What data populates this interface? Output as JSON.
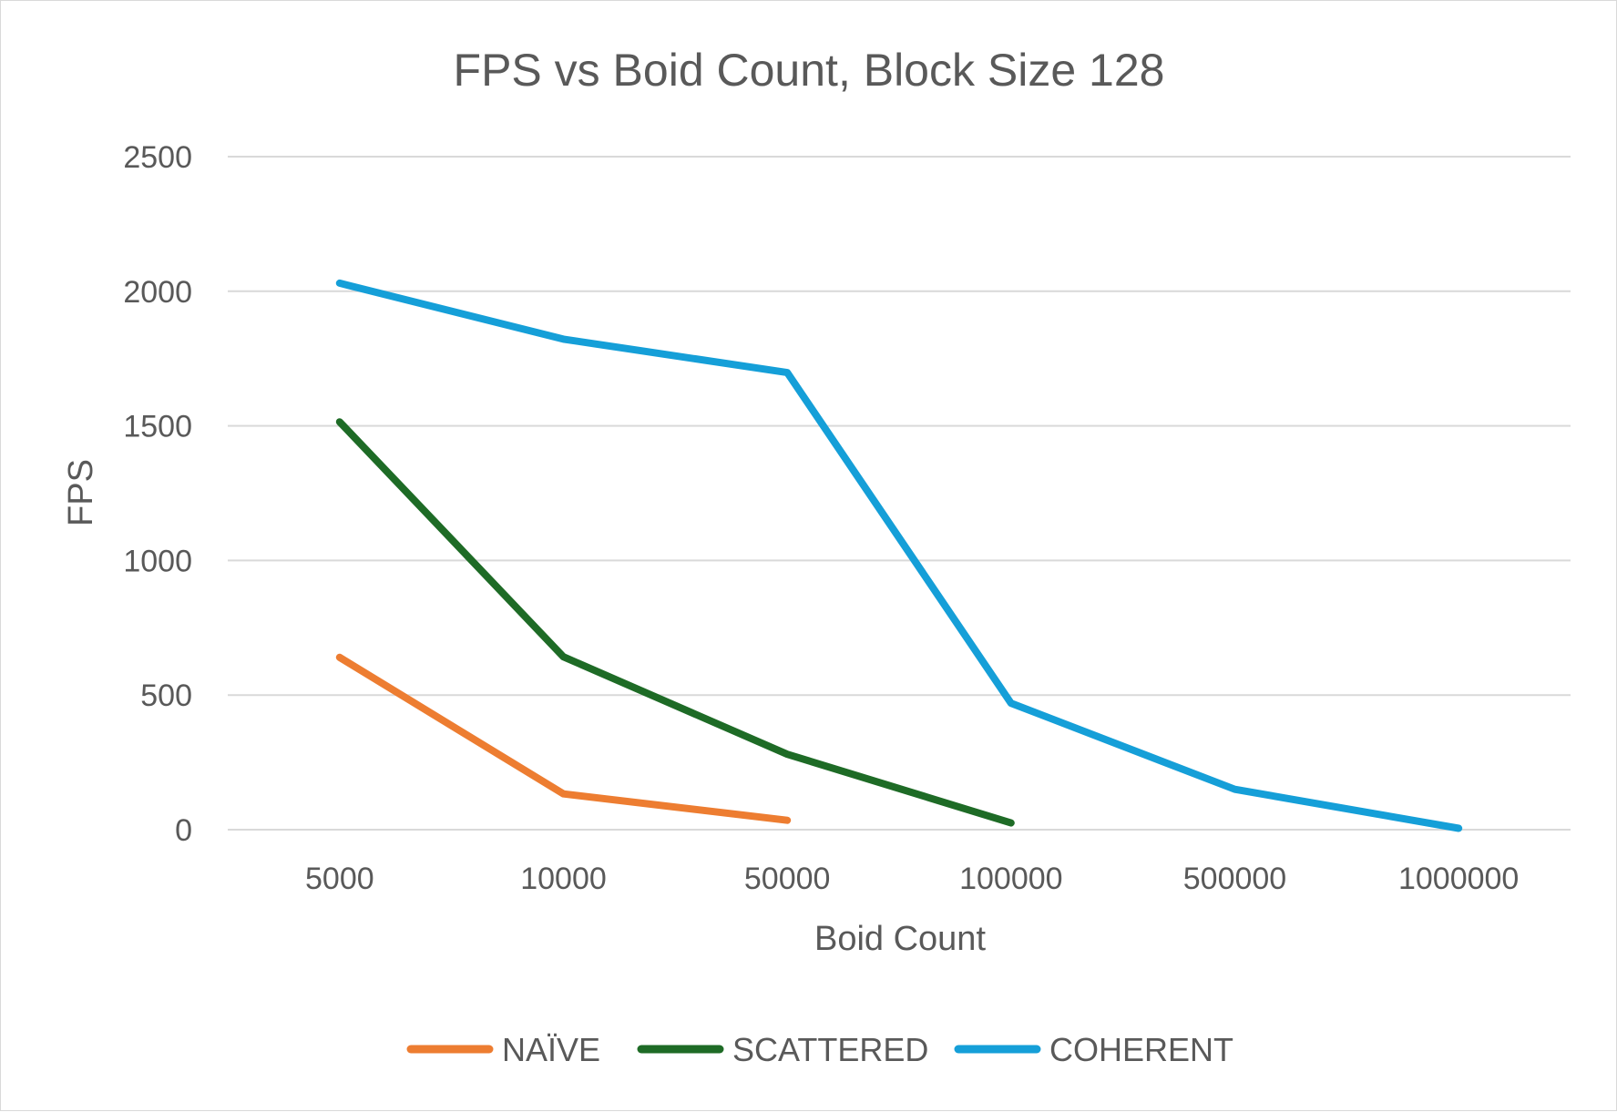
{
  "chart_data": {
    "type": "line",
    "title": "FPS vs Boid Count, Block Size 128",
    "xlabel": "Boid Count",
    "ylabel": "FPS",
    "categories": [
      "5000",
      "10000",
      "50000",
      "100000",
      "500000",
      "1000000"
    ],
    "ylim": [
      0,
      2500
    ],
    "yticks": [
      0,
      500,
      1000,
      1500,
      2000,
      2500
    ],
    "grid": true,
    "legend_position": "bottom",
    "series": [
      {
        "name": "NAÏVE",
        "color": "#ed7d31",
        "values": [
          640,
          133,
          35,
          null,
          null,
          null
        ]
      },
      {
        "name": "SCATTERED",
        "color": "#1e6b26",
        "values": [
          1515,
          642,
          280,
          25,
          null,
          null
        ]
      },
      {
        "name": "COHERENT",
        "color": "#159fd8",
        "values": [
          2030,
          1822,
          1698,
          470,
          150,
          5
        ]
      }
    ]
  }
}
